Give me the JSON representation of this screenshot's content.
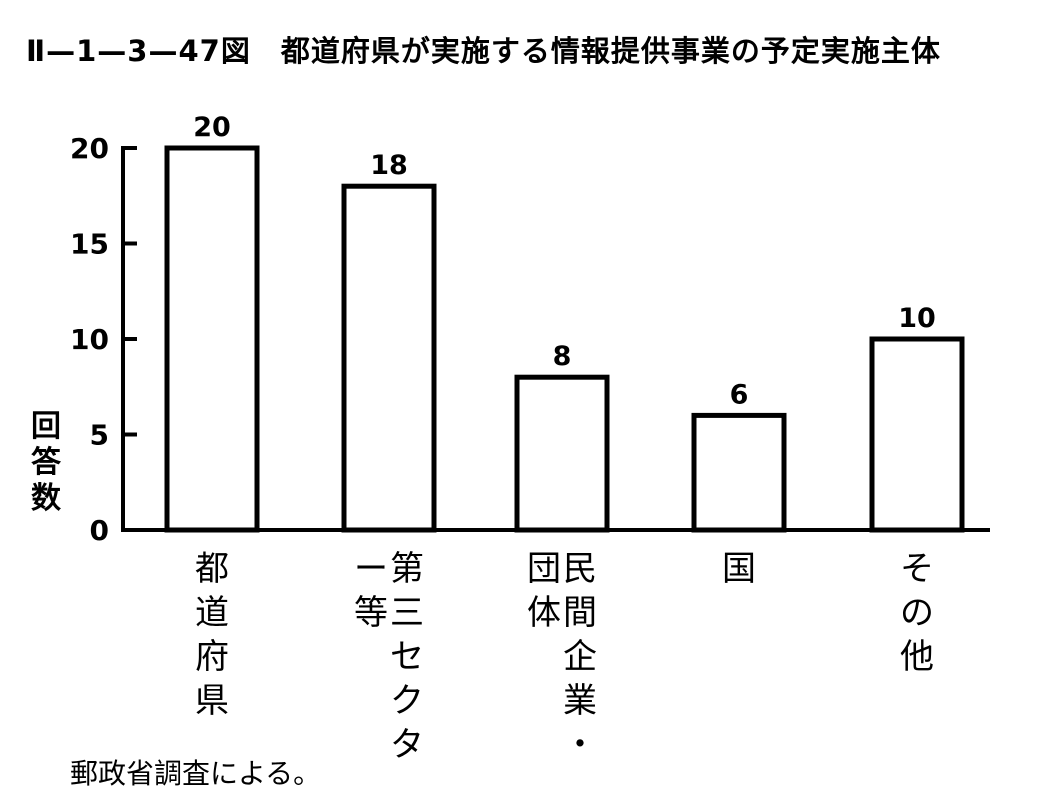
{
  "title": "Ⅱ—1—3—47図　都道府県が実施する情報提供事業の予定実施主体",
  "source_note": "郵政省調査による。",
  "chart_data": {
    "type": "bar",
    "categories": [
      "都道府県",
      "第三セクター等",
      "民間企業・団体",
      "国",
      "その他"
    ],
    "category_label_lines": [
      [
        "都道府県"
      ],
      [
        "第三セクタ",
        "ー等"
      ],
      [
        "民間企業・",
        "団体"
      ],
      [
        "国"
      ],
      [
        "その他"
      ]
    ],
    "values": [
      20,
      18,
      8,
      6,
      10
    ],
    "data_labels": [
      "20",
      "18",
      "8",
      "6",
      "10"
    ],
    "title": "都道府県が実施する情報提供事業の予定実施主体",
    "xlabel": "",
    "ylabel": "回答数",
    "ylim": [
      0,
      20
    ],
    "yticks": [
      0,
      5,
      10,
      15,
      20
    ],
    "ytick_labels": [
      "0",
      "5",
      "10",
      "15",
      "20"
    ],
    "grid": false,
    "legend": "none",
    "colors": {
      "bar_fill": "#ffffff",
      "bar_stroke": "#000000"
    }
  }
}
